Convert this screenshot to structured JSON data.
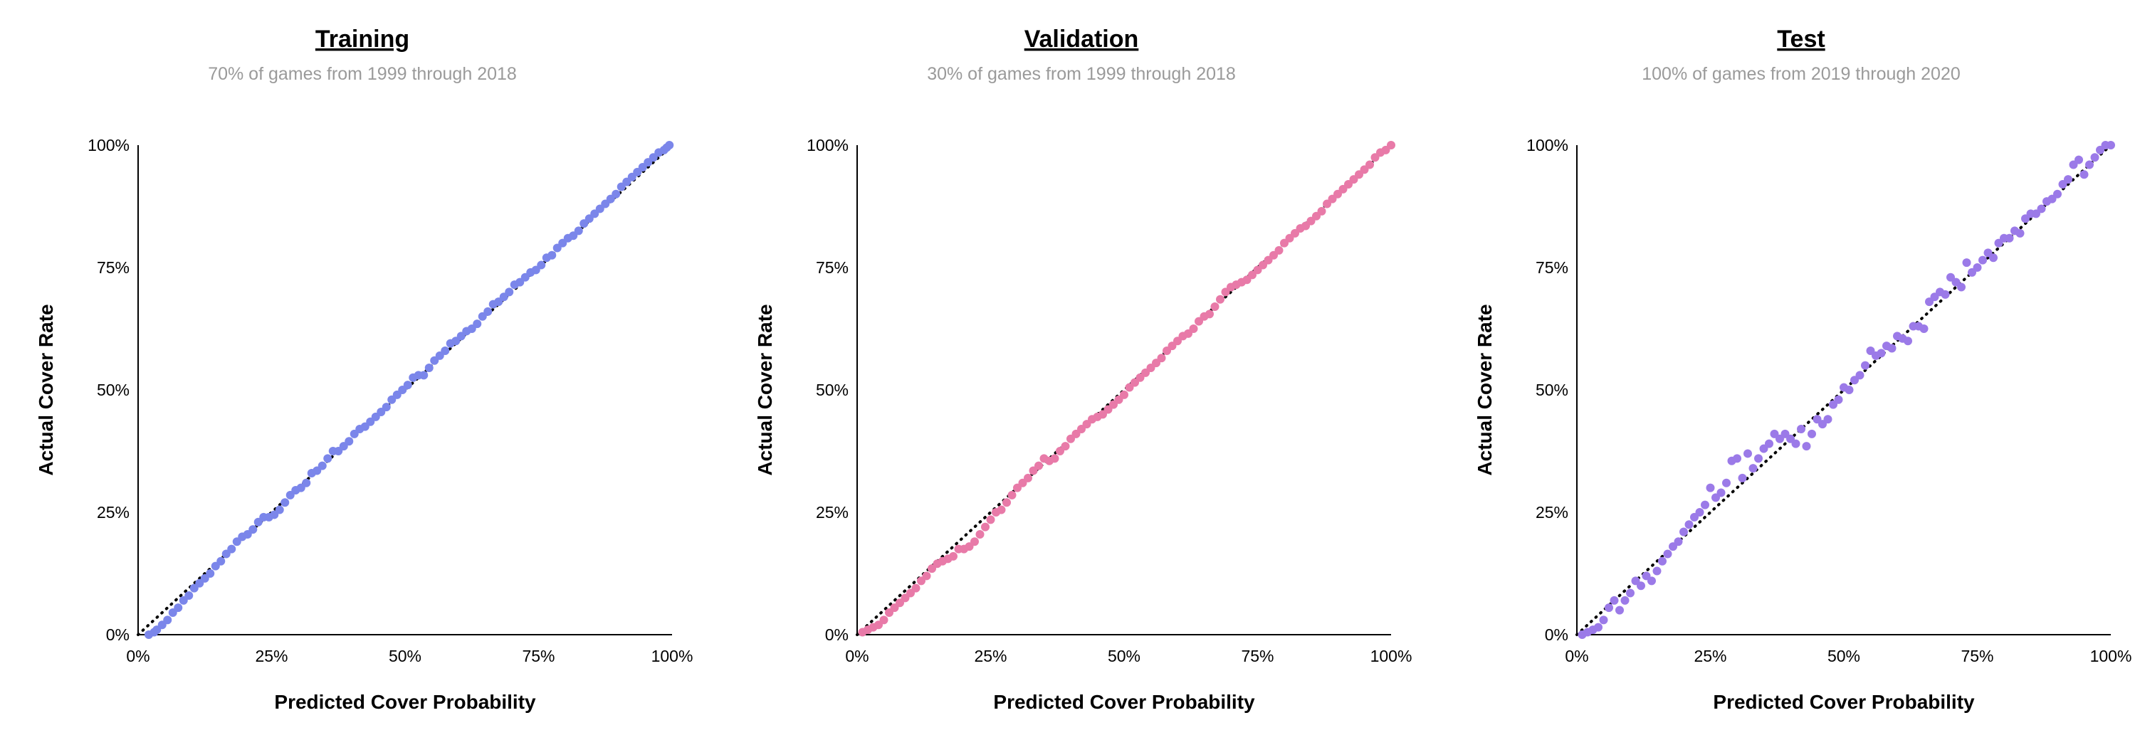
{
  "chart_data": [
    {
      "type": "scatter",
      "title": "Training",
      "subtitle": "70% of games from 1999 through 2018",
      "xlabel": "Predicted Cover Probability",
      "ylabel": "Actual Cover Rate",
      "xlim": [
        0,
        1
      ],
      "ylim": [
        0,
        1
      ],
      "xticks": [
        "0%",
        "25%",
        "50%",
        "75%",
        "100%"
      ],
      "yticks": [
        "0%",
        "25%",
        "50%",
        "75%",
        "100%"
      ],
      "reference_line": "y = x (dotted)",
      "color": "#7b86ea",
      "points": [
        [
          0.02,
          0.0
        ],
        [
          0.03,
          0.005
        ],
        [
          0.035,
          0.01
        ],
        [
          0.045,
          0.02
        ],
        [
          0.055,
          0.03
        ],
        [
          0.065,
          0.045
        ],
        [
          0.075,
          0.055
        ],
        [
          0.085,
          0.07
        ],
        [
          0.095,
          0.08
        ],
        [
          0.105,
          0.095
        ],
        [
          0.115,
          0.105
        ],
        [
          0.125,
          0.115
        ],
        [
          0.135,
          0.125
        ],
        [
          0.145,
          0.14
        ],
        [
          0.155,
          0.15
        ],
        [
          0.165,
          0.165
        ],
        [
          0.175,
          0.175
        ],
        [
          0.185,
          0.19
        ],
        [
          0.195,
          0.2
        ],
        [
          0.205,
          0.205
        ],
        [
          0.215,
          0.215
        ],
        [
          0.225,
          0.23
        ],
        [
          0.235,
          0.24
        ],
        [
          0.245,
          0.24
        ],
        [
          0.255,
          0.245
        ],
        [
          0.265,
          0.255
        ],
        [
          0.275,
          0.27
        ],
        [
          0.285,
          0.285
        ],
        [
          0.295,
          0.295
        ],
        [
          0.305,
          0.3
        ],
        [
          0.315,
          0.31
        ],
        [
          0.325,
          0.33
        ],
        [
          0.335,
          0.335
        ],
        [
          0.345,
          0.345
        ],
        [
          0.355,
          0.36
        ],
        [
          0.365,
          0.375
        ],
        [
          0.375,
          0.375
        ],
        [
          0.385,
          0.385
        ],
        [
          0.395,
          0.395
        ],
        [
          0.405,
          0.41
        ],
        [
          0.415,
          0.42
        ],
        [
          0.425,
          0.425
        ],
        [
          0.435,
          0.435
        ],
        [
          0.445,
          0.445
        ],
        [
          0.455,
          0.455
        ],
        [
          0.465,
          0.465
        ],
        [
          0.475,
          0.48
        ],
        [
          0.485,
          0.49
        ],
        [
          0.495,
          0.5
        ],
        [
          0.505,
          0.51
        ],
        [
          0.515,
          0.525
        ],
        [
          0.525,
          0.53
        ],
        [
          0.535,
          0.53
        ],
        [
          0.545,
          0.545
        ],
        [
          0.555,
          0.56
        ],
        [
          0.565,
          0.57
        ],
        [
          0.575,
          0.58
        ],
        [
          0.585,
          0.595
        ],
        [
          0.595,
          0.6
        ],
        [
          0.605,
          0.61
        ],
        [
          0.615,
          0.62
        ],
        [
          0.625,
          0.625
        ],
        [
          0.635,
          0.635
        ],
        [
          0.645,
          0.65
        ],
        [
          0.655,
          0.66
        ],
        [
          0.665,
          0.675
        ],
        [
          0.675,
          0.68
        ],
        [
          0.685,
          0.69
        ],
        [
          0.695,
          0.7
        ],
        [
          0.705,
          0.715
        ],
        [
          0.715,
          0.72
        ],
        [
          0.725,
          0.73
        ],
        [
          0.735,
          0.74
        ],
        [
          0.745,
          0.745
        ],
        [
          0.755,
          0.755
        ],
        [
          0.765,
          0.77
        ],
        [
          0.775,
          0.775
        ],
        [
          0.785,
          0.79
        ],
        [
          0.795,
          0.8
        ],
        [
          0.805,
          0.81
        ],
        [
          0.815,
          0.815
        ],
        [
          0.825,
          0.825
        ],
        [
          0.835,
          0.84
        ],
        [
          0.845,
          0.85
        ],
        [
          0.855,
          0.86
        ],
        [
          0.865,
          0.87
        ],
        [
          0.875,
          0.88
        ],
        [
          0.885,
          0.89
        ],
        [
          0.895,
          0.9
        ],
        [
          0.905,
          0.915
        ],
        [
          0.915,
          0.925
        ],
        [
          0.925,
          0.935
        ],
        [
          0.935,
          0.945
        ],
        [
          0.945,
          0.955
        ],
        [
          0.955,
          0.965
        ],
        [
          0.965,
          0.975
        ],
        [
          0.975,
          0.985
        ],
        [
          0.985,
          0.99
        ],
        [
          0.99,
          0.995
        ],
        [
          0.995,
          1.0
        ]
      ]
    },
    {
      "type": "scatter",
      "title": "Validation",
      "subtitle": "30% of games from 1999 through 2018",
      "xlabel": "Predicted Cover Probability",
      "ylabel": "Actual Cover Rate",
      "xlim": [
        0,
        1
      ],
      "ylim": [
        0,
        1
      ],
      "xticks": [
        "0%",
        "25%",
        "50%",
        "75%",
        "100%"
      ],
      "yticks": [
        "0%",
        "25%",
        "50%",
        "75%",
        "100%"
      ],
      "reference_line": "y = x (dotted)",
      "color": "#e87aa8",
      "points": [
        [
          0.01,
          0.005
        ],
        [
          0.02,
          0.01
        ],
        [
          0.03,
          0.015
        ],
        [
          0.04,
          0.02
        ],
        [
          0.05,
          0.03
        ],
        [
          0.06,
          0.045
        ],
        [
          0.07,
          0.055
        ],
        [
          0.08,
          0.065
        ],
        [
          0.09,
          0.075
        ],
        [
          0.1,
          0.085
        ],
        [
          0.11,
          0.095
        ],
        [
          0.12,
          0.11
        ],
        [
          0.13,
          0.12
        ],
        [
          0.14,
          0.135
        ],
        [
          0.15,
          0.145
        ],
        [
          0.16,
          0.15
        ],
        [
          0.17,
          0.155
        ],
        [
          0.18,
          0.16
        ],
        [
          0.19,
          0.175
        ],
        [
          0.2,
          0.175
        ],
        [
          0.21,
          0.18
        ],
        [
          0.22,
          0.19
        ],
        [
          0.23,
          0.205
        ],
        [
          0.24,
          0.22
        ],
        [
          0.25,
          0.235
        ],
        [
          0.26,
          0.25
        ],
        [
          0.27,
          0.255
        ],
        [
          0.28,
          0.27
        ],
        [
          0.29,
          0.285
        ],
        [
          0.3,
          0.3
        ],
        [
          0.31,
          0.31
        ],
        [
          0.32,
          0.32
        ],
        [
          0.33,
          0.335
        ],
        [
          0.34,
          0.345
        ],
        [
          0.35,
          0.36
        ],
        [
          0.36,
          0.355
        ],
        [
          0.37,
          0.36
        ],
        [
          0.38,
          0.375
        ],
        [
          0.39,
          0.385
        ],
        [
          0.4,
          0.4
        ],
        [
          0.41,
          0.41
        ],
        [
          0.42,
          0.42
        ],
        [
          0.43,
          0.43
        ],
        [
          0.44,
          0.44
        ],
        [
          0.45,
          0.445
        ],
        [
          0.46,
          0.45
        ],
        [
          0.47,
          0.46
        ],
        [
          0.48,
          0.47
        ],
        [
          0.49,
          0.48
        ],
        [
          0.5,
          0.49
        ],
        [
          0.51,
          0.505
        ],
        [
          0.52,
          0.515
        ],
        [
          0.53,
          0.525
        ],
        [
          0.54,
          0.535
        ],
        [
          0.55,
          0.545
        ],
        [
          0.56,
          0.555
        ],
        [
          0.57,
          0.565
        ],
        [
          0.58,
          0.58
        ],
        [
          0.59,
          0.59
        ],
        [
          0.6,
          0.6
        ],
        [
          0.61,
          0.61
        ],
        [
          0.62,
          0.615
        ],
        [
          0.63,
          0.625
        ],
        [
          0.64,
          0.64
        ],
        [
          0.65,
          0.65
        ],
        [
          0.66,
          0.655
        ],
        [
          0.67,
          0.67
        ],
        [
          0.68,
          0.685
        ],
        [
          0.69,
          0.7
        ],
        [
          0.7,
          0.71
        ],
        [
          0.71,
          0.715
        ],
        [
          0.72,
          0.72
        ],
        [
          0.73,
          0.725
        ],
        [
          0.74,
          0.735
        ],
        [
          0.75,
          0.745
        ],
        [
          0.76,
          0.755
        ],
        [
          0.77,
          0.765
        ],
        [
          0.78,
          0.775
        ],
        [
          0.79,
          0.785
        ],
        [
          0.8,
          0.8
        ],
        [
          0.81,
          0.81
        ],
        [
          0.82,
          0.82
        ],
        [
          0.83,
          0.83
        ],
        [
          0.84,
          0.835
        ],
        [
          0.85,
          0.845
        ],
        [
          0.86,
          0.855
        ],
        [
          0.87,
          0.865
        ],
        [
          0.88,
          0.88
        ],
        [
          0.89,
          0.89
        ],
        [
          0.9,
          0.9
        ],
        [
          0.91,
          0.91
        ],
        [
          0.92,
          0.92
        ],
        [
          0.93,
          0.93
        ],
        [
          0.94,
          0.94
        ],
        [
          0.95,
          0.95
        ],
        [
          0.96,
          0.96
        ],
        [
          0.97,
          0.975
        ],
        [
          0.98,
          0.985
        ],
        [
          0.99,
          0.99
        ],
        [
          1.0,
          1.0
        ]
      ]
    },
    {
      "type": "scatter",
      "title": "Test",
      "subtitle": "100% of games from 2019 through 2020",
      "xlabel": "Predicted Cover Probability",
      "ylabel": "Actual Cover Rate",
      "xlim": [
        0,
        1
      ],
      "ylim": [
        0,
        1
      ],
      "xticks": [
        "0%",
        "25%",
        "50%",
        "75%",
        "100%"
      ],
      "yticks": [
        "0%",
        "25%",
        "50%",
        "75%",
        "100%"
      ],
      "reference_line": "y = x (dotted)",
      "color": "#9b7ae8",
      "points": [
        [
          0.01,
          0.0
        ],
        [
          0.02,
          0.005
        ],
        [
          0.03,
          0.01
        ],
        [
          0.04,
          0.015
        ],
        [
          0.05,
          0.03
        ],
        [
          0.06,
          0.055
        ],
        [
          0.07,
          0.07
        ],
        [
          0.08,
          0.05
        ],
        [
          0.09,
          0.07
        ],
        [
          0.1,
          0.085
        ],
        [
          0.11,
          0.11
        ],
        [
          0.12,
          0.1
        ],
        [
          0.13,
          0.12
        ],
        [
          0.14,
          0.11
        ],
        [
          0.15,
          0.13
        ],
        [
          0.16,
          0.15
        ],
        [
          0.17,
          0.165
        ],
        [
          0.18,
          0.18
        ],
        [
          0.19,
          0.19
        ],
        [
          0.2,
          0.21
        ],
        [
          0.21,
          0.225
        ],
        [
          0.22,
          0.24
        ],
        [
          0.23,
          0.25
        ],
        [
          0.24,
          0.265
        ],
        [
          0.25,
          0.3
        ],
        [
          0.26,
          0.28
        ],
        [
          0.27,
          0.29
        ],
        [
          0.28,
          0.31
        ],
        [
          0.29,
          0.355
        ],
        [
          0.3,
          0.36
        ],
        [
          0.31,
          0.32
        ],
        [
          0.32,
          0.37
        ],
        [
          0.33,
          0.34
        ],
        [
          0.34,
          0.36
        ],
        [
          0.35,
          0.38
        ],
        [
          0.36,
          0.39
        ],
        [
          0.37,
          0.41
        ],
        [
          0.38,
          0.4
        ],
        [
          0.39,
          0.41
        ],
        [
          0.4,
          0.4
        ],
        [
          0.41,
          0.39
        ],
        [
          0.42,
          0.42
        ],
        [
          0.43,
          0.385
        ],
        [
          0.44,
          0.41
        ],
        [
          0.45,
          0.44
        ],
        [
          0.46,
          0.43
        ],
        [
          0.47,
          0.44
        ],
        [
          0.48,
          0.47
        ],
        [
          0.49,
          0.48
        ],
        [
          0.5,
          0.505
        ],
        [
          0.51,
          0.5
        ],
        [
          0.52,
          0.52
        ],
        [
          0.53,
          0.53
        ],
        [
          0.54,
          0.55
        ],
        [
          0.55,
          0.58
        ],
        [
          0.56,
          0.57
        ],
        [
          0.57,
          0.575
        ],
        [
          0.58,
          0.59
        ],
        [
          0.59,
          0.585
        ],
        [
          0.6,
          0.61
        ],
        [
          0.61,
          0.605
        ],
        [
          0.62,
          0.6
        ],
        [
          0.63,
          0.63
        ],
        [
          0.64,
          0.63
        ],
        [
          0.65,
          0.625
        ],
        [
          0.66,
          0.68
        ],
        [
          0.67,
          0.69
        ],
        [
          0.68,
          0.7
        ],
        [
          0.69,
          0.695
        ],
        [
          0.7,
          0.73
        ],
        [
          0.71,
          0.72
        ],
        [
          0.72,
          0.71
        ],
        [
          0.73,
          0.76
        ],
        [
          0.74,
          0.74
        ],
        [
          0.75,
          0.75
        ],
        [
          0.76,
          0.765
        ],
        [
          0.77,
          0.78
        ],
        [
          0.78,
          0.77
        ],
        [
          0.79,
          0.8
        ],
        [
          0.8,
          0.81
        ],
        [
          0.81,
          0.81
        ],
        [
          0.82,
          0.825
        ],
        [
          0.83,
          0.82
        ],
        [
          0.84,
          0.85
        ],
        [
          0.85,
          0.86
        ],
        [
          0.86,
          0.86
        ],
        [
          0.87,
          0.87
        ],
        [
          0.88,
          0.885
        ],
        [
          0.89,
          0.89
        ],
        [
          0.9,
          0.9
        ],
        [
          0.91,
          0.92
        ],
        [
          0.92,
          0.93
        ],
        [
          0.93,
          0.96
        ],
        [
          0.94,
          0.97
        ],
        [
          0.95,
          0.94
        ],
        [
          0.96,
          0.96
        ],
        [
          0.97,
          0.975
        ],
        [
          0.98,
          0.99
        ],
        [
          0.99,
          1.0
        ],
        [
          1.0,
          1.0
        ]
      ]
    }
  ]
}
